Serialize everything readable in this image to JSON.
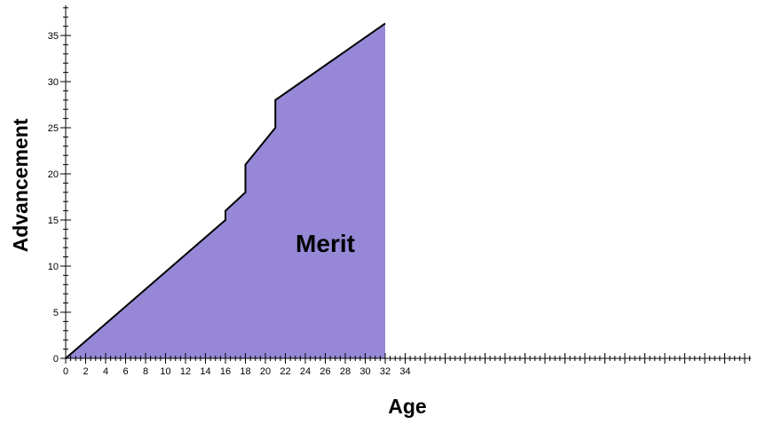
{
  "chart_data": {
    "type": "area",
    "title": "",
    "xlabel": "Age",
    "ylabel": "Advancement",
    "xlim": [
      0,
      34
    ],
    "ylim": [
      0,
      37
    ],
    "x_ticks": [
      0,
      2,
      4,
      6,
      8,
      10,
      12,
      14,
      16,
      18,
      20,
      22,
      24,
      26,
      28,
      30,
      32,
      34
    ],
    "y_ticks": [
      0,
      5,
      10,
      15,
      20,
      25,
      30,
      35
    ],
    "grid": false,
    "series": [
      {
        "name": "Merit",
        "color": "#9688d6",
        "outline_color": "#000000",
        "points": [
          {
            "x": 0,
            "y": 0
          },
          {
            "x": 16,
            "y": 15
          },
          {
            "x": 16,
            "y": 16
          },
          {
            "x": 18,
            "y": 18
          },
          {
            "x": 18,
            "y": 21
          },
          {
            "x": 21,
            "y": 25
          },
          {
            "x": 21,
            "y": 28
          },
          {
            "x": 32,
            "y": 36.3
          }
        ]
      }
    ],
    "annotations": [
      {
        "text": "Merit",
        "x": 26,
        "y": 12.5
      }
    ]
  }
}
